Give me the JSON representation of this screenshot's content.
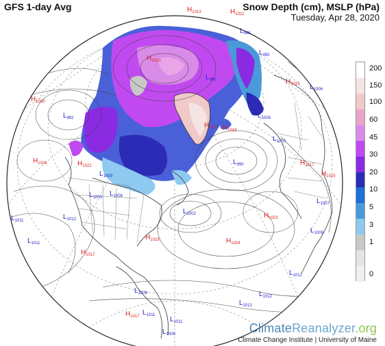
{
  "header": {
    "left_title": "GFS 1-day Avg",
    "right_title": "Snow Depth (cm), MSLP (hPa)",
    "date": "Tuesday, Apr 28, 2020"
  },
  "legend": {
    "ticks": [
      "200",
      "150",
      "100",
      "60",
      "45",
      "30",
      "20",
      "10",
      "5",
      "3",
      "1",
      "0"
    ],
    "colors": [
      "#ffffff",
      "#f6e4e4",
      "#f0c9c9",
      "#e8a5c9",
      "#d98be8",
      "#c04af0",
      "#8a2be2",
      "#2b2bb5",
      "#1e6fd9",
      "#4a9ad9",
      "#8ec9f0",
      "#c8c8c8",
      "#e4e4e4",
      "#f0f0f0"
    ]
  },
  "pressure_labels": [
    {
      "t": "H",
      "v": "1013"
    },
    {
      "t": "H",
      "v": "1022"
    },
    {
      "t": "L",
      "v": "998"
    },
    {
      "t": "L",
      "v": "995"
    },
    {
      "t": "H",
      "v": "1030"
    },
    {
      "t": "L",
      "v": "992"
    },
    {
      "t": "L",
      "v": "1006"
    },
    {
      "t": "H",
      "v": "1020"
    },
    {
      "t": "L",
      "v": "990"
    },
    {
      "t": "H",
      "v": "1013"
    },
    {
      "t": "H",
      "v": "1026"
    },
    {
      "t": "H",
      "v": "1022"
    },
    {
      "t": "L",
      "v": "1012"
    },
    {
      "t": "L",
      "v": "1011"
    },
    {
      "t": "L",
      "v": "1011"
    },
    {
      "t": "L",
      "v": "1008"
    },
    {
      "t": "L",
      "v": "1002"
    },
    {
      "t": "H",
      "v": "1023"
    },
    {
      "t": "H",
      "v": "1023"
    },
    {
      "t": "H",
      "v": "1024"
    },
    {
      "t": "H",
      "v": "1017"
    },
    {
      "t": "L",
      "v": "990"
    },
    {
      "t": "H",
      "v": "1017"
    },
    {
      "t": "H",
      "v": "1015"
    },
    {
      "t": "L",
      "v": "1007"
    },
    {
      "t": "L",
      "v": "1009"
    },
    {
      "t": "L",
      "v": "1012"
    },
    {
      "t": "L",
      "v": "1012"
    },
    {
      "t": "L",
      "v": "1012"
    },
    {
      "t": "L",
      "v": "1011"
    },
    {
      "t": "L",
      "v": "1011"
    },
    {
      "t": "H",
      "v": "1017"
    },
    {
      "t": "L",
      "v": "1006"
    },
    {
      "t": "L",
      "v": "1008"
    },
    {
      "t": "L",
      "v": "1009"
    },
    {
      "t": "L",
      "v": "1003"
    },
    {
      "t": "H",
      "v": "1017"
    },
    {
      "t": "L",
      "v": "1003"
    },
    {
      "t": "L",
      "v": "1006"
    },
    {
      "t": "H",
      "v": "1019"
    }
  ],
  "brand": {
    "part1": "Climate",
    "part2": "Reanalyzer",
    "part3": ".org",
    "subtitle": "Climate Change Institute | University of Maine"
  }
}
